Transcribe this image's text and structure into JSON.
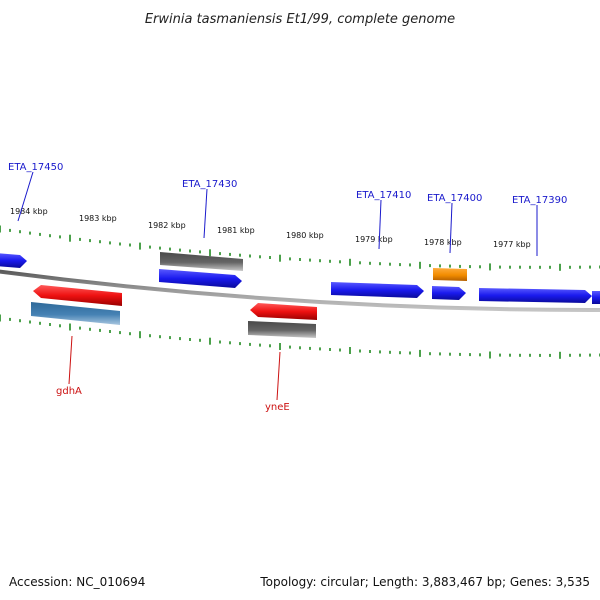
{
  "title": "Erwinia tasmaniensis Et1/99, complete genome",
  "footer": {
    "accession": "Accession: NC_010694",
    "topology": "Topology: circular; Length: 3,883,467 bp; Genes: 3,535"
  },
  "colors": {
    "forward_gene": "#1a1aee",
    "reverse_gene": "#ee1111",
    "pseudo_gene": "#666666",
    "steelblue_gene": "#4682b4",
    "orange_gene": "#f28c00",
    "forward_label": "#1a1acc",
    "reverse_label": "#cc1111",
    "tick": "#1f8a1f",
    "backbone": "#8a8a8a"
  },
  "ticks": [
    {
      "label": "1984 kbp"
    },
    {
      "label": "1983 kbp"
    },
    {
      "label": "1982 kbp"
    },
    {
      "label": "1981 kbp"
    },
    {
      "label": "1980 kbp"
    },
    {
      "label": "1979 kbp"
    },
    {
      "label": "1978 kbp"
    },
    {
      "label": "1977 kbp"
    }
  ],
  "gene_labels": {
    "eta_17450": "ETA_17450",
    "eta_17430": "ETA_17430",
    "eta_17410": "ETA_17410",
    "eta_17400": "ETA_17400",
    "eta_17390": "ETA_17390",
    "gdha": "gdhA",
    "ynee": "yneE"
  }
}
